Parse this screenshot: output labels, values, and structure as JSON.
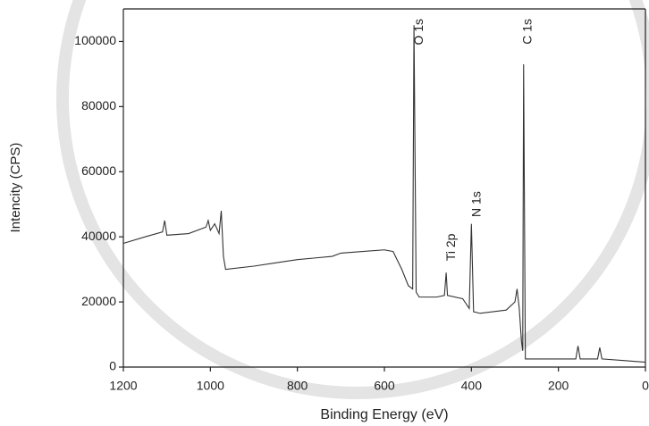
{
  "chart_data": {
    "type": "line",
    "x_label": "Binding Energy (eV)",
    "y_label": "Intencity (CPS)",
    "xlim": [
      1200,
      0
    ],
    "ylim": [
      0,
      110000
    ],
    "xticks": [
      1200,
      1000,
      800,
      600,
      400,
      200,
      0
    ],
    "yticks": [
      0,
      20000,
      40000,
      60000,
      80000,
      100000
    ],
    "grid": false,
    "series": [
      {
        "color": "#333333",
        "x": [
          1200,
          1150,
          1110,
          1105,
          1100,
          1050,
          1010,
          1005,
          1000,
          990,
          980,
          975,
          970,
          965,
          900,
          850,
          800,
          760,
          720,
          700,
          650,
          600,
          580,
          560,
          545,
          535,
          532,
          527,
          520,
          480,
          462,
          458,
          455,
          420,
          405,
          400,
          395,
          380,
          320,
          300,
          295,
          290,
          285,
          282,
          280,
          276,
          200,
          160,
          155,
          150,
          110,
          105,
          100,
          50,
          0
        ],
        "values": [
          38000,
          40000,
          41500,
          45000,
          40500,
          41000,
          43000,
          45000,
          42000,
          44000,
          41000,
          48000,
          34000,
          30000,
          31000,
          32000,
          33000,
          33500,
          34000,
          35000,
          35500,
          36000,
          35500,
          30000,
          25000,
          24000,
          105000,
          23000,
          21500,
          21500,
          22000,
          29000,
          22000,
          21000,
          18000,
          44000,
          17000,
          16500,
          17500,
          20000,
          24000,
          18000,
          8000,
          5000,
          93000,
          2500,
          2500,
          2500,
          6500,
          2500,
          2500,
          6000,
          2500,
          2000,
          1500
        ]
      }
    ],
    "annotations": [
      {
        "text": "O 1s",
        "x": 530,
        "y": 107000
      },
      {
        "text": "Ti 2p",
        "x": 456,
        "y": 41000
      },
      {
        "text": "N 1s",
        "x": 397,
        "y": 54000
      },
      {
        "text": "C 1s",
        "x": 280,
        "y": 107000
      }
    ]
  }
}
